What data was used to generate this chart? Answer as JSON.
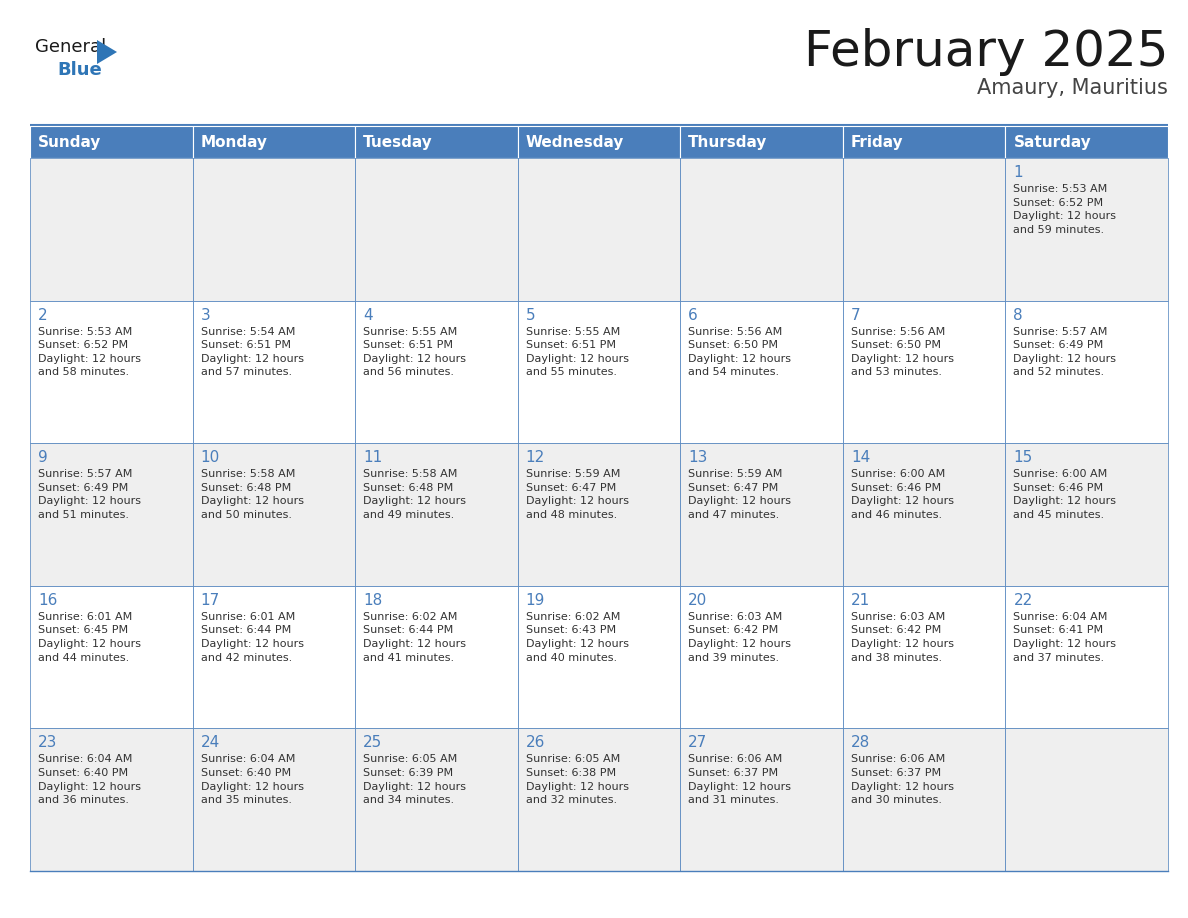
{
  "title": "February 2025",
  "subtitle": "Amaury, Mauritius",
  "header_bg": "#4A7EBB",
  "header_text_color": "#FFFFFF",
  "cell_bg_even": "#EFEFEF",
  "cell_bg_odd": "#FFFFFF",
  "border_color": "#4A7EBB",
  "text_color": "#333333",
  "days_of_week": [
    "Sunday",
    "Monday",
    "Tuesday",
    "Wednesday",
    "Thursday",
    "Friday",
    "Saturday"
  ],
  "weeks": [
    [
      {
        "day": null,
        "info": null
      },
      {
        "day": null,
        "info": null
      },
      {
        "day": null,
        "info": null
      },
      {
        "day": null,
        "info": null
      },
      {
        "day": null,
        "info": null
      },
      {
        "day": null,
        "info": null
      },
      {
        "day": 1,
        "info": "Sunrise: 5:53 AM\nSunset: 6:52 PM\nDaylight: 12 hours\nand 59 minutes."
      }
    ],
    [
      {
        "day": 2,
        "info": "Sunrise: 5:53 AM\nSunset: 6:52 PM\nDaylight: 12 hours\nand 58 minutes."
      },
      {
        "day": 3,
        "info": "Sunrise: 5:54 AM\nSunset: 6:51 PM\nDaylight: 12 hours\nand 57 minutes."
      },
      {
        "day": 4,
        "info": "Sunrise: 5:55 AM\nSunset: 6:51 PM\nDaylight: 12 hours\nand 56 minutes."
      },
      {
        "day": 5,
        "info": "Sunrise: 5:55 AM\nSunset: 6:51 PM\nDaylight: 12 hours\nand 55 minutes."
      },
      {
        "day": 6,
        "info": "Sunrise: 5:56 AM\nSunset: 6:50 PM\nDaylight: 12 hours\nand 54 minutes."
      },
      {
        "day": 7,
        "info": "Sunrise: 5:56 AM\nSunset: 6:50 PM\nDaylight: 12 hours\nand 53 minutes."
      },
      {
        "day": 8,
        "info": "Sunrise: 5:57 AM\nSunset: 6:49 PM\nDaylight: 12 hours\nand 52 minutes."
      }
    ],
    [
      {
        "day": 9,
        "info": "Sunrise: 5:57 AM\nSunset: 6:49 PM\nDaylight: 12 hours\nand 51 minutes."
      },
      {
        "day": 10,
        "info": "Sunrise: 5:58 AM\nSunset: 6:48 PM\nDaylight: 12 hours\nand 50 minutes."
      },
      {
        "day": 11,
        "info": "Sunrise: 5:58 AM\nSunset: 6:48 PM\nDaylight: 12 hours\nand 49 minutes."
      },
      {
        "day": 12,
        "info": "Sunrise: 5:59 AM\nSunset: 6:47 PM\nDaylight: 12 hours\nand 48 minutes."
      },
      {
        "day": 13,
        "info": "Sunrise: 5:59 AM\nSunset: 6:47 PM\nDaylight: 12 hours\nand 47 minutes."
      },
      {
        "day": 14,
        "info": "Sunrise: 6:00 AM\nSunset: 6:46 PM\nDaylight: 12 hours\nand 46 minutes."
      },
      {
        "day": 15,
        "info": "Sunrise: 6:00 AM\nSunset: 6:46 PM\nDaylight: 12 hours\nand 45 minutes."
      }
    ],
    [
      {
        "day": 16,
        "info": "Sunrise: 6:01 AM\nSunset: 6:45 PM\nDaylight: 12 hours\nand 44 minutes."
      },
      {
        "day": 17,
        "info": "Sunrise: 6:01 AM\nSunset: 6:44 PM\nDaylight: 12 hours\nand 42 minutes."
      },
      {
        "day": 18,
        "info": "Sunrise: 6:02 AM\nSunset: 6:44 PM\nDaylight: 12 hours\nand 41 minutes."
      },
      {
        "day": 19,
        "info": "Sunrise: 6:02 AM\nSunset: 6:43 PM\nDaylight: 12 hours\nand 40 minutes."
      },
      {
        "day": 20,
        "info": "Sunrise: 6:03 AM\nSunset: 6:42 PM\nDaylight: 12 hours\nand 39 minutes."
      },
      {
        "day": 21,
        "info": "Sunrise: 6:03 AM\nSunset: 6:42 PM\nDaylight: 12 hours\nand 38 minutes."
      },
      {
        "day": 22,
        "info": "Sunrise: 6:04 AM\nSunset: 6:41 PM\nDaylight: 12 hours\nand 37 minutes."
      }
    ],
    [
      {
        "day": 23,
        "info": "Sunrise: 6:04 AM\nSunset: 6:40 PM\nDaylight: 12 hours\nand 36 minutes."
      },
      {
        "day": 24,
        "info": "Sunrise: 6:04 AM\nSunset: 6:40 PM\nDaylight: 12 hours\nand 35 minutes."
      },
      {
        "day": 25,
        "info": "Sunrise: 6:05 AM\nSunset: 6:39 PM\nDaylight: 12 hours\nand 34 minutes."
      },
      {
        "day": 26,
        "info": "Sunrise: 6:05 AM\nSunset: 6:38 PM\nDaylight: 12 hours\nand 32 minutes."
      },
      {
        "day": 27,
        "info": "Sunrise: 6:06 AM\nSunset: 6:37 PM\nDaylight: 12 hours\nand 31 minutes."
      },
      {
        "day": 28,
        "info": "Sunrise: 6:06 AM\nSunset: 6:37 PM\nDaylight: 12 hours\nand 30 minutes."
      },
      {
        "day": null,
        "info": null
      }
    ]
  ],
  "logo_color_general": "#1a1a1a",
  "logo_color_blue": "#2E75B6",
  "logo_triangle_color": "#2E75B6",
  "title_fontsize": 36,
  "subtitle_fontsize": 15,
  "header_fontsize": 11,
  "day_num_fontsize": 11,
  "info_fontsize": 8
}
